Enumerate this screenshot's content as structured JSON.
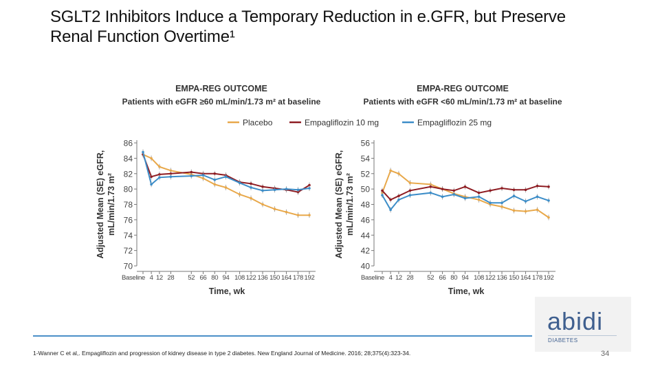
{
  "slide": {
    "title_line1": "SGLT2 Inhibitors Induce a Temporary Reduction in e.GFR, but Preserve",
    "title_line2": "Renal Function Overtime¹",
    "footnote": "1-Wanner C et al,. Empagliflozin and progression of kidney disease in type 2 diabetes. New England Journal of Medicine. 2016; 28;375(4):323-34.",
    "page_number": "34",
    "logo": {
      "text": "abidi",
      "subtitle": "DIABETES"
    }
  },
  "legend": [
    {
      "name": "Placebo",
      "color": "#e8a84a"
    },
    {
      "name": "Empagliflozin 10 mg",
      "color": "#8e1c22"
    },
    {
      "name": "Empagliflozin 25 mg",
      "color": "#3c8dc8"
    }
  ],
  "chart_data": [
    {
      "type": "line",
      "title": "EMPA-REG OUTCOME",
      "subtitle": "Patients with eGFR ≥60 mL/min/1.73 m² at baseline",
      "xlabel": "Time, wk",
      "ylabel_line1": "Adjusted Mean (SE) eGFR,",
      "ylabel_line2": "mL/min/1.73 m²",
      "x": [
        0,
        4,
        12,
        28,
        52,
        66,
        80,
        94,
        108,
        122,
        136,
        150,
        164,
        178,
        192
      ],
      "x_tick_labels": [
        "Baseline",
        "4",
        "12",
        "28",
        "52",
        "66",
        "80",
        "94",
        "108",
        "122",
        "136",
        "150",
        "164",
        "178",
        "192"
      ],
      "ylim": [
        70,
        86
      ],
      "yticks": [
        70,
        72,
        74,
        76,
        78,
        80,
        82,
        84,
        86
      ],
      "series": [
        {
          "name": "Placebo",
          "values": [
            84.5,
            84.0,
            82.9,
            82.4,
            81.9,
            81.4,
            80.6,
            80.2,
            79.3,
            78.8,
            78.0,
            77.4,
            77.0,
            76.6,
            76.6
          ]
        },
        {
          "name": "Empagliflozin 10 mg",
          "values": [
            84.5,
            81.6,
            81.9,
            82.0,
            82.2,
            82.0,
            82.0,
            81.8,
            80.9,
            80.7,
            80.3,
            80.1,
            79.9,
            79.6,
            80.5
          ]
        },
        {
          "name": "Empagliflozin 25 mg",
          "values": [
            84.8,
            80.6,
            81.5,
            81.6,
            81.7,
            81.8,
            81.2,
            81.6,
            80.8,
            80.2,
            79.8,
            79.9,
            80.0,
            79.9,
            80.1
          ]
        }
      ]
    },
    {
      "type": "line",
      "title": "EMPA-REG OUTCOME",
      "subtitle": "Patients with eGFR <60 mL/min/1.73 m² at baseline",
      "xlabel": "Time, wk",
      "ylabel_line1": "Adjusted Mean (SE) eGFR,",
      "ylabel_line2": "mL/min/1.73 m²",
      "x": [
        0,
        4,
        12,
        28,
        52,
        66,
        80,
        94,
        108,
        122,
        136,
        150,
        164,
        178,
        192
      ],
      "x_tick_labels": [
        "Baseline",
        "4",
        "12",
        "28",
        "52",
        "66",
        "80",
        "94",
        "108",
        "122",
        "136",
        "150",
        "164",
        "178",
        "192"
      ],
      "ylim": [
        40,
        56
      ],
      "yticks": [
        40,
        42,
        44,
        46,
        48,
        50,
        52,
        54,
        56
      ],
      "series": [
        {
          "name": "Placebo",
          "values": [
            49.5,
            52.4,
            52.0,
            50.8,
            50.6,
            50.0,
            49.4,
            49.0,
            48.6,
            48.0,
            47.7,
            47.2,
            47.1,
            47.3,
            46.3
          ]
        },
        {
          "name": "Empagliflozin 10 mg",
          "values": [
            49.8,
            48.6,
            49.1,
            49.8,
            50.3,
            50.0,
            49.8,
            50.3,
            49.5,
            49.8,
            50.1,
            49.9,
            49.9,
            50.4,
            50.3
          ]
        },
        {
          "name": "Empagliflozin 25 mg",
          "values": [
            49.2,
            47.3,
            48.6,
            49.2,
            49.5,
            49.0,
            49.3,
            48.8,
            49.0,
            48.2,
            48.2,
            49.1,
            48.4,
            49.0,
            48.5
          ]
        }
      ]
    }
  ]
}
